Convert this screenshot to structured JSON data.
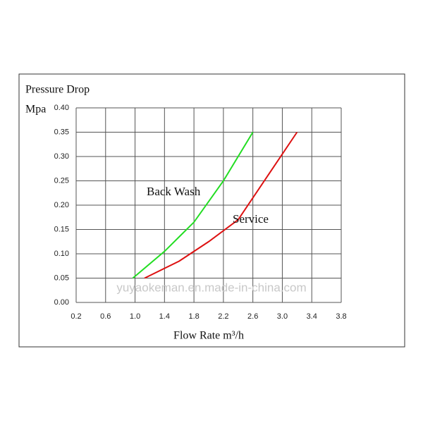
{
  "chart_data": {
    "type": "line",
    "y_label_line1": "Pressure Drop",
    "y_label_line2": "Mpa",
    "x_label": "Flow Rate m³/h",
    "watermark": "yuyaokeman.en.made-in-china.com",
    "xlim": [
      0.2,
      3.8
    ],
    "xticks": [
      0.2,
      0.6,
      {
        "value": 1.0,
        "label": "1.0"
      },
      1.4,
      1.8,
      2.2,
      2.6,
      {
        "value": 3.0,
        "label": "3.0"
      },
      3.4,
      3.8
    ],
    "ylim": [
      0,
      0.4
    ],
    "yticks": [
      {
        "value": 0,
        "label": "0.00"
      },
      {
        "value": 0.05,
        "label": "0.05"
      },
      {
        "value": 0.1,
        "label": "0.10"
      },
      {
        "value": 0.15,
        "label": "0.15"
      },
      {
        "value": 0.2,
        "label": "0.20"
      },
      {
        "value": 0.25,
        "label": "0.25"
      },
      {
        "value": 0.3,
        "label": "0.30"
      },
      {
        "value": 0.35,
        "label": "0.35"
      },
      {
        "value": 0.4,
        "label": "0.40"
      }
    ],
    "grid": true,
    "series": [
      {
        "name": "Back Wash",
        "color": "#22dd22",
        "x": [
          0.97,
          1.4,
          1.8,
          2.2,
          2.6
        ],
        "values": [
          0.05,
          0.105,
          0.165,
          0.25,
          0.35
        ]
      },
      {
        "name": "Service",
        "color": "#dd1111",
        "x": [
          1.13,
          1.6,
          2.0,
          2.4,
          2.8,
          3.2
        ],
        "values": [
          0.05,
          0.085,
          0.125,
          0.17,
          0.26,
          0.35
        ]
      }
    ]
  }
}
